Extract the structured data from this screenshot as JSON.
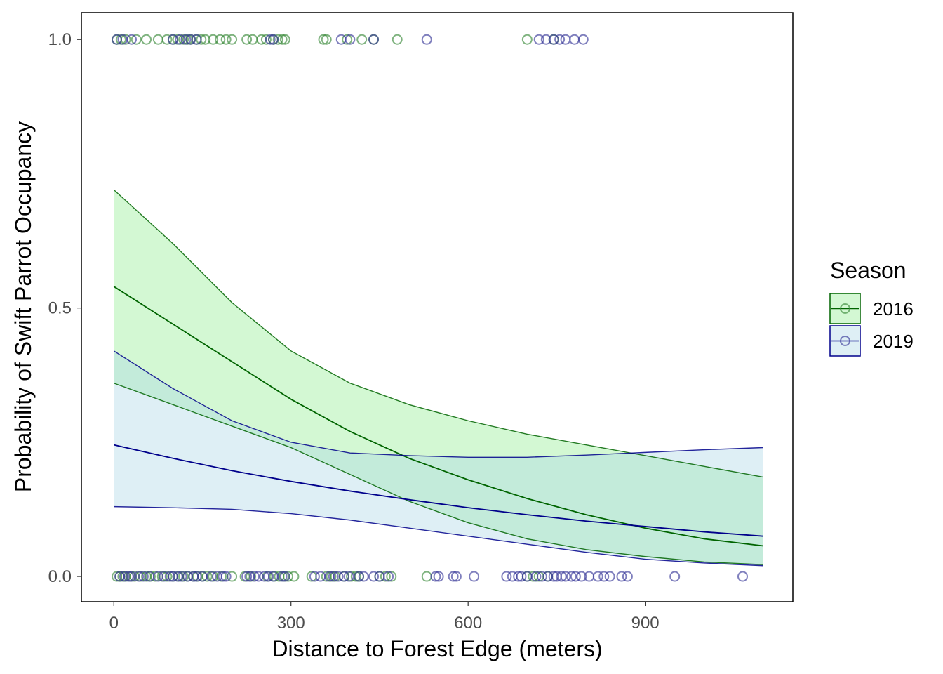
{
  "chart_data": {
    "type": "scatter",
    "title": "",
    "xlabel": "Distance to Forest Edge (meters)",
    "ylabel": "Probability of Swift Parrot Occupancy",
    "xlim": [
      -55,
      1150
    ],
    "ylim": [
      -0.047,
      1.05
    ],
    "xticks": [
      0,
      300,
      600,
      900
    ],
    "xtick_labels": [
      "0",
      "300",
      "600",
      "900"
    ],
    "yticks": [
      0,
      0.5,
      1
    ],
    "ytick_labels": [
      "0.0",
      "0.5",
      "1.0"
    ],
    "grid": false,
    "legend": {
      "title": "Season",
      "position": "right"
    },
    "series": [
      {
        "name": "2016",
        "line_color": "#006400",
        "fill_color": "#90ee90",
        "point_color": "#3a8a3a",
        "fit": {
          "x": [
            0,
            100,
            200,
            300,
            400,
            500,
            600,
            700,
            800,
            900,
            1000,
            1100
          ],
          "y": [
            0.54,
            0.47,
            0.4,
            0.33,
            0.27,
            0.22,
            0.18,
            0.145,
            0.115,
            0.09,
            0.07,
            0.057
          ],
          "lower": [
            0.36,
            0.32,
            0.28,
            0.24,
            0.19,
            0.14,
            0.1,
            0.07,
            0.05,
            0.037,
            0.027,
            0.022
          ],
          "upper": [
            0.72,
            0.62,
            0.51,
            0.42,
            0.36,
            0.32,
            0.29,
            0.265,
            0.245,
            0.225,
            0.205,
            0.185
          ]
        },
        "points": {
          "present": [
            5,
            12,
            20,
            38,
            55,
            75,
            90,
            100,
            108,
            118,
            125,
            130,
            140,
            148,
            155,
            168,
            180,
            190,
            200,
            225,
            235,
            250,
            258,
            270,
            278,
            285,
            290,
            355,
            360,
            395,
            420,
            440,
            480,
            700,
            745
          ],
          "absent": [
            5,
            10,
            15,
            20,
            28,
            35,
            45,
            55,
            62,
            70,
            82,
            90,
            100,
            110,
            118,
            125,
            135,
            142,
            150,
            158,
            168,
            182,
            200,
            222,
            232,
            260,
            272,
            280,
            288,
            295,
            305,
            335,
            360,
            368,
            375,
            390,
            402,
            410,
            415,
            450,
            460,
            470,
            530,
            700,
            710,
            720,
            735
          ]
        }
      },
      {
        "name": "2019",
        "line_color": "#00008b",
        "fill_color": "#add8e6",
        "point_color": "#3a3a9a",
        "fit": {
          "x": [
            0,
            100,
            200,
            300,
            400,
            500,
            600,
            700,
            800,
            900,
            1000,
            1100
          ],
          "y": [
            0.245,
            0.22,
            0.197,
            0.177,
            0.159,
            0.143,
            0.128,
            0.115,
            0.103,
            0.093,
            0.083,
            0.075
          ],
          "lower": [
            0.13,
            0.128,
            0.125,
            0.117,
            0.105,
            0.09,
            0.075,
            0.06,
            0.045,
            0.032,
            0.025,
            0.02
          ],
          "upper": [
            0.42,
            0.35,
            0.29,
            0.25,
            0.23,
            0.225,
            0.222,
            0.222,
            0.226,
            0.231,
            0.236,
            0.24
          ]
        },
        "points": {
          "present": [
            5,
            15,
            30,
            100,
            112,
            122,
            130,
            140,
            265,
            270,
            385,
            400,
            440,
            530,
            720,
            732,
            745,
            755,
            765,
            780,
            795
          ],
          "absent": [
            10,
            18,
            25,
            30,
            42,
            50,
            60,
            75,
            85,
            95,
            100,
            108,
            115,
            125,
            135,
            140,
            150,
            165,
            175,
            185,
            190,
            225,
            230,
            238,
            245,
            255,
            262,
            270,
            285,
            290,
            340,
            350,
            365,
            372,
            380,
            390,
            398,
            415,
            423,
            440,
            450,
            465,
            545,
            550,
            575,
            580,
            610,
            665,
            675,
            685,
            690,
            700,
            715,
            725,
            735,
            745,
            750,
            758,
            765,
            775,
            782,
            792,
            805,
            820,
            830,
            840,
            860,
            870,
            950,
            1065
          ]
        }
      }
    ]
  }
}
